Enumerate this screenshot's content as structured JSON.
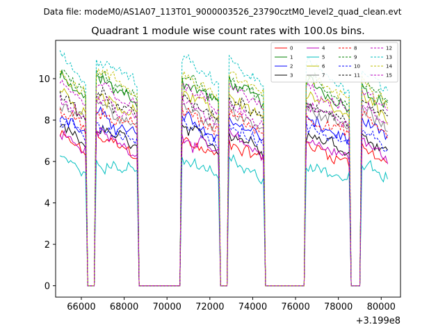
{
  "chart_data": {
    "type": "line",
    "suptitle": "Data file: modeM0/AS1A07_113T01_9000003526_23790cztM0_level2_quad_clean.evt",
    "title": "Quadrant 1 module wise count rates with 100.0s bins.",
    "xlabel": "",
    "ylabel": "",
    "x_offset_label": "+3.199e8",
    "xlim": [
      64800,
      80900
    ],
    "ylim": [
      -0.55,
      11.85
    ],
    "xticks": [
      66000,
      68000,
      70000,
      72000,
      74000,
      76000,
      78000,
      80000
    ],
    "xtick_labels": [
      "66000",
      "68000",
      "70000",
      "72000",
      "74000",
      "76000",
      "78000",
      "80000"
    ],
    "yticks": [
      0,
      2,
      4,
      6,
      8,
      10
    ],
    "ytick_labels": [
      "0",
      "2",
      "4",
      "6",
      "8",
      "10"
    ],
    "legend_position": "upper right",
    "segments": [
      {
        "start": 65000,
        "end": 66200,
        "gap_at": 66350,
        "gap_len": 300
      },
      {
        "start": 66700,
        "end": 68600,
        "gap_at": null
      },
      {
        "start": 70700,
        "end": 72400,
        "gap_at": null
      },
      {
        "start": 72900,
        "end": 74500,
        "gap_at": null
      },
      {
        "start": 76500,
        "end": 78500,
        "gap_at": null
      },
      {
        "start": 79100,
        "end": 80300,
        "gap_at": null
      }
    ],
    "series": [
      {
        "name": "0",
        "color": "#ff0000",
        "style": "solid",
        "level_start": 6.9,
        "level_end": 6.4
      },
      {
        "name": "1",
        "color": "#008000",
        "style": "solid",
        "level_start": 9.6,
        "level_end": 9.3
      },
      {
        "name": "2",
        "color": "#0000ff",
        "style": "solid",
        "level_start": 7.9,
        "level_end": 7.5
      },
      {
        "name": "3",
        "color": "#000000",
        "style": "solid",
        "level_start": 7.3,
        "level_end": 7.0
      },
      {
        "name": "4",
        "color": "#bf00bf",
        "style": "solid",
        "level_start": 7.1,
        "level_end": 6.6
      },
      {
        "name": "5",
        "color": "#00bfbf",
        "style": "solid",
        "level_start": 5.9,
        "level_end": 5.5
      },
      {
        "name": "6",
        "color": "#bfbf00",
        "style": "solid",
        "level_start": 9.0,
        "level_end": 8.6
      },
      {
        "name": "7",
        "color": "#808080",
        "style": "solid",
        "level_start": 8.4,
        "level_end": 8.1
      },
      {
        "name": "8",
        "color": "#ff0000",
        "style": "dashed",
        "level_start": 8.2,
        "level_end": 7.8
      },
      {
        "name": "9",
        "color": "#008000",
        "style": "dashed",
        "level_start": 9.9,
        "level_end": 9.5
      },
      {
        "name": "10",
        "color": "#0000ff",
        "style": "dashed",
        "level_start": 7.6,
        "level_end": 7.2
      },
      {
        "name": "11",
        "color": "#000000",
        "style": "dashed",
        "level_start": 8.8,
        "level_end": 8.4
      },
      {
        "name": "12",
        "color": "#bf00bf",
        "style": "dashed",
        "level_start": 9.3,
        "level_end": 9.0
      },
      {
        "name": "13",
        "color": "#00bfbf",
        "style": "dashed",
        "level_start": 10.6,
        "level_end": 10.1
      },
      {
        "name": "14",
        "color": "#bfbf00",
        "style": "dashed",
        "level_start": 10.0,
        "level_end": 9.6
      },
      {
        "name": "15",
        "color": "#bf00bf",
        "style": "dashed",
        "level_start": 8.7,
        "level_end": 8.3
      }
    ]
  }
}
